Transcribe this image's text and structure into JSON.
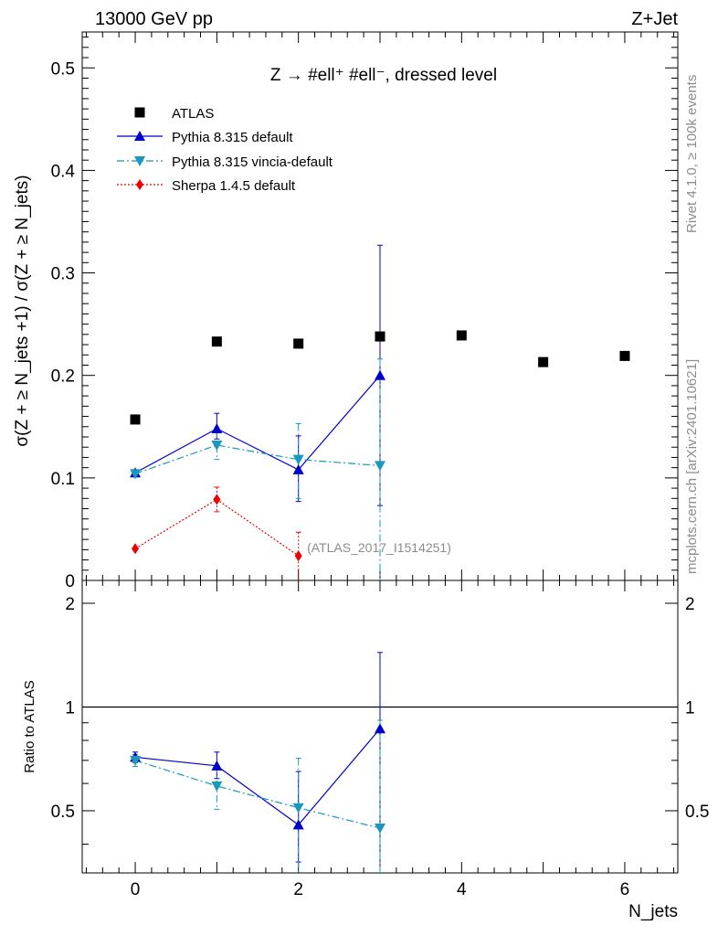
{
  "header": {
    "left": "13000 GeV pp",
    "right": "Z+Jet"
  },
  "side_text": {
    "rivet": "Rivet 4.1.0, ≥ 100k events",
    "mcplots": "mcplots.cern.ch [arXiv:2401.10621]"
  },
  "plot_title": "Z → #ell⁺ #ell⁻, dressed level",
  "analysis_label": "(ATLAS_2017_I1514251)",
  "ylabel_main": "σ(Z + ≥ N_jets +1) / σ(Z + ≥ N_jets)",
  "ylabel_ratio": "Ratio to ATLAS",
  "xlabel": "N_jets",
  "legend": [
    {
      "label": "ATLAS",
      "series": "data"
    },
    {
      "label": "Pythia 8.315 default",
      "series": "py_default"
    },
    {
      "label": "Pythia 8.315 vincia-default",
      "series": "py_vincia"
    },
    {
      "label": "Sherpa 1.4.5 default",
      "series": "sherpa"
    }
  ],
  "chart_data": [
    {
      "type": "scatter",
      "panel": "main",
      "xlim": [
        -0.65,
        6.65
      ],
      "ylim": [
        0,
        0.535
      ],
      "x_ticks": [
        0,
        2,
        4,
        6
      ],
      "y_ticks": [
        0,
        0.1,
        0.2,
        0.3,
        0.4,
        0.5
      ],
      "y_tick_labels": [
        "0",
        "0.1",
        "0.2",
        "0.3",
        "0.4",
        "0.5"
      ],
      "series": [
        {
          "id": "data",
          "name": "ATLAS",
          "color": "#000000",
          "marker": "square",
          "line": "none",
          "x": [
            0,
            1,
            2,
            3,
            4,
            5,
            6
          ],
          "y": [
            0.157,
            0.233,
            0.231,
            0.238,
            0.239,
            0.213,
            0.219
          ]
        },
        {
          "id": "py_default",
          "name": "Pythia 8.315 default",
          "color": "#0000cc",
          "marker": "triangle-up",
          "line": "solid",
          "x": [
            0,
            1,
            2,
            3
          ],
          "y": [
            0.105,
            0.148,
            0.108,
            0.2
          ],
          "err_lo": [
            0.003,
            0.01,
            0.031,
            0.127
          ],
          "err_hi": [
            0.003,
            0.015,
            0.033,
            0.127
          ]
        },
        {
          "id": "py_vincia",
          "name": "Pythia 8.315 vincia-default",
          "color": "#1999bb",
          "marker": "triangle-down",
          "line": "dashdot",
          "x": [
            0,
            1,
            2,
            3
          ],
          "y": [
            0.104,
            0.132,
            0.118,
            0.112
          ],
          "err_lo": [
            0.003,
            0.014,
            0.038,
            0.112
          ],
          "err_hi": [
            0.003,
            0.014,
            0.035,
            0.104
          ]
        },
        {
          "id": "sherpa",
          "name": "Sherpa 1.4.5 default",
          "color": "#ee0000",
          "marker": "diamond",
          "line": "dotted",
          "x": [
            0,
            1,
            2
          ],
          "y": [
            0.031,
            0.079,
            0.024
          ],
          "err_lo": [
            0.001,
            0.012,
            0.024
          ],
          "err_hi": [
            0.001,
            0.012,
            0.023
          ]
        }
      ]
    },
    {
      "type": "scatter",
      "panel": "ratio",
      "xlim": [
        -0.65,
        6.65
      ],
      "ylim": [
        0.33,
        2.33
      ],
      "log_y": true,
      "x_ticks": [
        0,
        2,
        4,
        6
      ],
      "x_tick_labels": [
        "0",
        "2",
        "4",
        "6"
      ],
      "y_ticks": [
        0.5,
        1,
        2
      ],
      "y_tick_labels": [
        "0.5",
        "1",
        "2"
      ],
      "reference_line": 1,
      "series": [
        {
          "id": "py_default",
          "name": "Pythia 8.315 default",
          "color": "#0000cc",
          "marker": "triangle-up",
          "line": "solid",
          "x": [
            0,
            1,
            2,
            3
          ],
          "y": [
            0.715,
            0.675,
            0.455,
            0.865
          ],
          "err_lo": [
            0.025,
            0.055,
            0.1,
            0.55
          ],
          "err_hi": [
            0.025,
            0.065,
            0.195,
            0.575
          ]
        },
        {
          "id": "py_vincia",
          "name": "Pythia 8.315 vincia-default",
          "color": "#1999bb",
          "marker": "triangle-down",
          "line": "dashdot",
          "x": [
            0,
            1,
            2,
            3
          ],
          "y": [
            0.7,
            0.59,
            0.51,
            0.445
          ],
          "err_lo": [
            0.028,
            0.085,
            0.2,
            0.2
          ],
          "err_hi": [
            0.028,
            0.085,
            0.2,
            0.47
          ]
        }
      ]
    }
  ]
}
